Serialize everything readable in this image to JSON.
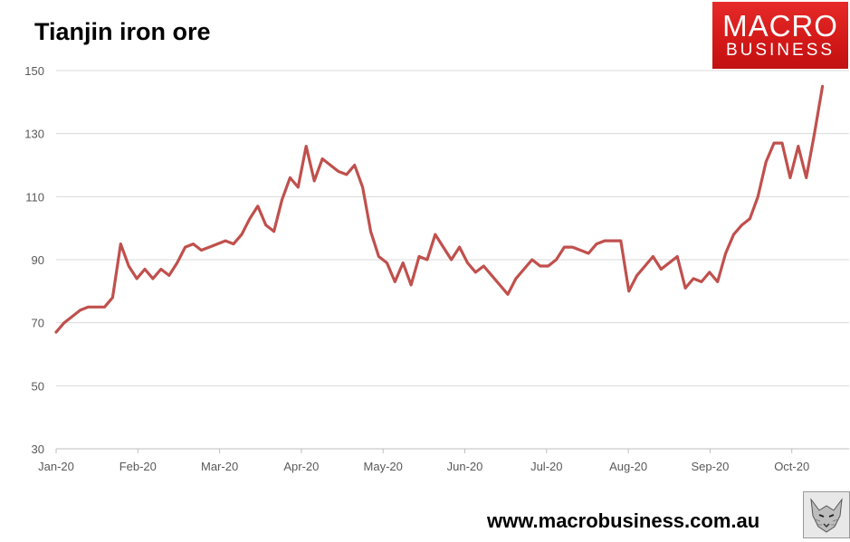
{
  "chart_data": {
    "type": "line",
    "title": "Tianjin iron ore",
    "xlabel": "",
    "ylabel": "",
    "ylim": [
      30,
      150
    ],
    "y_ticks": [
      30,
      50,
      70,
      90,
      110,
      130,
      150
    ],
    "x_ticks": [
      "Jan-20",
      "Feb-20",
      "Mar-20",
      "Apr-20",
      "May-20",
      "Jun-20",
      "Jul-20",
      "Aug-20",
      "Sep-20",
      "Oct-20"
    ],
    "series": [
      {
        "name": "Tianjin iron ore",
        "color": "#c0504d",
        "x": [
          0,
          3,
          6,
          9,
          12,
          15,
          18,
          21,
          24,
          27,
          30,
          33,
          36,
          39,
          42,
          45,
          48,
          51,
          54,
          57,
          60,
          63,
          66,
          69,
          72,
          75,
          78,
          81,
          84,
          87,
          90,
          93,
          96,
          99,
          102,
          105,
          108,
          111,
          114,
          117,
          120,
          123,
          126,
          129,
          132,
          135,
          138,
          141,
          144,
          147,
          150,
          153,
          156,
          159,
          162,
          165,
          168,
          171,
          174,
          177,
          180,
          183,
          186,
          189,
          192,
          195,
          198,
          201,
          204,
          207,
          210,
          213,
          216,
          219,
          222,
          225,
          228,
          231,
          234,
          237,
          240,
          243,
          246,
          249,
          252,
          255,
          258,
          261,
          264,
          267,
          270,
          273,
          276,
          279,
          282,
          285
        ],
        "values": [
          67,
          70,
          72,
          74,
          75,
          75,
          75,
          78,
          95,
          88,
          84,
          87,
          84,
          87,
          85,
          89,
          94,
          95,
          93,
          94,
          95,
          96,
          95,
          98,
          103,
          107,
          101,
          99,
          109,
          116,
          113,
          126,
          115,
          122,
          120,
          118,
          117,
          120,
          113,
          99,
          91,
          89,
          83,
          89,
          82,
          91,
          90,
          98,
          94,
          90,
          94,
          89,
          86,
          88,
          85,
          82,
          79,
          84,
          87,
          90,
          88,
          88,
          90,
          94,
          94,
          93,
          92,
          95,
          96,
          96,
          96,
          80,
          85,
          88,
          91,
          87,
          89,
          91,
          81,
          84,
          83,
          86,
          83,
          92,
          98,
          101,
          103,
          110,
          121,
          127,
          127,
          116,
          126,
          116,
          130,
          145
        ]
      }
    ]
  },
  "website": "www.macrobusiness.com.au",
  "logo": {
    "line1": "MACRO",
    "line2": "BUSINESS"
  },
  "colors": {
    "line": "#c0504d",
    "logo_red": "#d71a1a",
    "grid": "#d9d9d9"
  }
}
